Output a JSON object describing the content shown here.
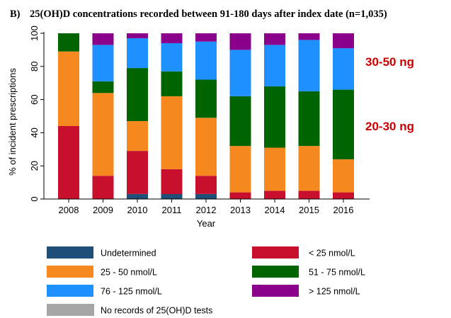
{
  "chart_data": {
    "type": "bar",
    "stacked": true,
    "panel_label": "B)",
    "title": "25(OH)D concentrations recorded between 91-180 days after index date (n=1,035)",
    "xlabel": "Year",
    "ylabel": "% of incident prescriptions",
    "ylim": [
      0,
      100
    ],
    "yticks": [
      0,
      20,
      40,
      60,
      80,
      100
    ],
    "grid": false,
    "categories": [
      "2008",
      "2009",
      "2010",
      "2011",
      "2012",
      "2013",
      "2014",
      "2015",
      "2016"
    ],
    "series": [
      {
        "name": "Undetermined",
        "color": "#1f4e79",
        "values": [
          0,
          0,
          3,
          3,
          3,
          0,
          0,
          0,
          0
        ]
      },
      {
        "name": "< 25 nmol/L",
        "color": "#c8102e",
        "values": [
          44,
          14,
          26,
          15,
          11,
          4,
          5,
          5,
          4
        ]
      },
      {
        "name": "25 - 50 nmol/L",
        "color": "#f5891f",
        "values": [
          45,
          50,
          18,
          44,
          35,
          28,
          26,
          27,
          20
        ]
      },
      {
        "name": "51 - 75 nmol/L",
        "color": "#006400",
        "values": [
          11,
          7,
          32,
          15,
          23,
          30,
          37,
          33,
          42
        ]
      },
      {
        "name": "76 - 125 nmol/L",
        "color": "#1e90ff",
        "values": [
          0,
          22,
          18,
          17,
          23,
          28,
          25,
          31,
          25
        ]
      },
      {
        "name": "> 125 nmol/L",
        "color": "#8b008b",
        "values": [
          0,
          7,
          3,
          6,
          5,
          10,
          7,
          4,
          9
        ]
      },
      {
        "name": "No records of 25(OH)D tests",
        "color": "#a6a6a6",
        "values": [
          0,
          0,
          0,
          0,
          0,
          0,
          0,
          0,
          0
        ]
      }
    ],
    "annotations": [
      {
        "text": "30-50 ng",
        "color": "#cc0000",
        "y_value": 83
      },
      {
        "text": "20-30 ng",
        "color": "#cc0000",
        "y_value": 44
      }
    ],
    "legend_order": [
      "Undetermined",
      "< 25 nmol/L",
      "25 - 50 nmol/L",
      "51 - 75 nmol/L",
      "76 - 125 nmol/L",
      "> 125 nmol/L",
      "No records of 25(OH)D tests"
    ],
    "legend_position": "bottom"
  }
}
